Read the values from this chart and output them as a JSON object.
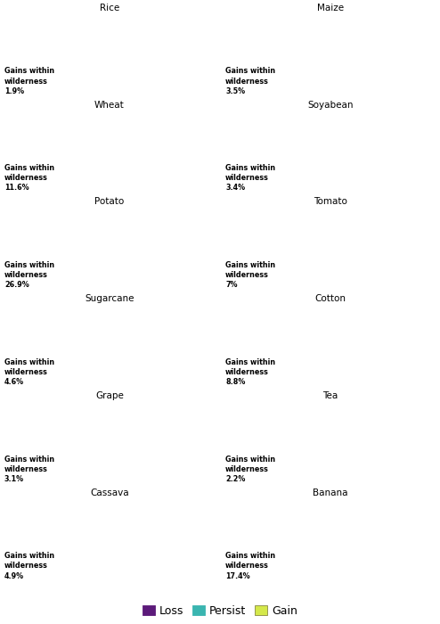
{
  "crops": [
    {
      "name": "Rice",
      "gains": "1.9%",
      "row": 0,
      "col": 0
    },
    {
      "name": "Maize",
      "gains": "3.5%",
      "row": 0,
      "col": 1
    },
    {
      "name": "Wheat",
      "gains": "11.6%",
      "row": 1,
      "col": 0
    },
    {
      "name": "Soyabean",
      "gains": "3.4%",
      "row": 1,
      "col": 1
    },
    {
      "name": "Potato",
      "gains": "26.9%",
      "row": 2,
      "col": 0
    },
    {
      "name": "Tomato",
      "gains": "7%",
      "row": 2,
      "col": 1
    },
    {
      "name": "Sugarcane",
      "gains": "4.6%",
      "row": 3,
      "col": 0
    },
    {
      "name": "Cotton",
      "gains": "8.8%",
      "row": 3,
      "col": 1
    },
    {
      "name": "Grape",
      "gains": "3.1%",
      "row": 4,
      "col": 0
    },
    {
      "name": "Tea",
      "gains": "2.2%",
      "row": 4,
      "col": 1
    },
    {
      "name": "Cassava",
      "gains": "4.9%",
      "row": 5,
      "col": 0
    },
    {
      "name": "Banana",
      "gains": "17.4%",
      "row": 5,
      "col": 1
    }
  ],
  "legend": [
    {
      "label": "Loss",
      "facecolor": "#5c1a7a",
      "edgecolor": "#5c1a7a"
    },
    {
      "label": "Persist",
      "facecolor": "#3ab5b0",
      "edgecolor": "#3ab5b0"
    },
    {
      "label": "Gain",
      "facecolor": "#d4e84a",
      "edgecolor": "#888844"
    }
  ],
  "background_color": "#ffffff",
  "land_color": "#d8d8d8",
  "ocean_color": "#f5f5f5",
  "coastline_color": "#888888",
  "border_color": "#bbbbbb",
  "title_fontsize": 7.5,
  "gains_fontsize": 5.8,
  "legend_fontsize": 9.0,
  "coastline_lw": 0.25,
  "border_lw": 0.15
}
